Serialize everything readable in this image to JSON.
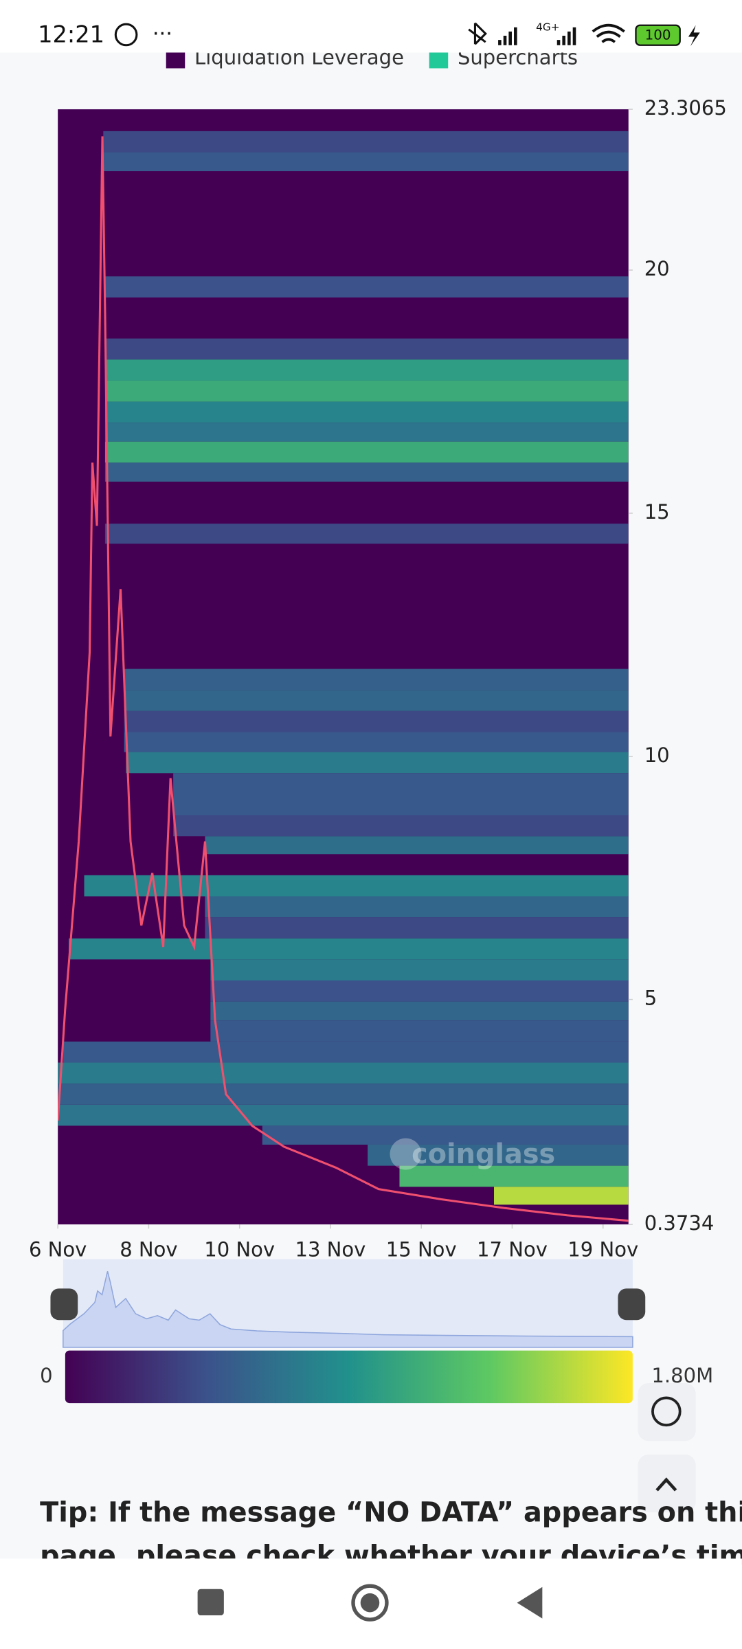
{
  "status_bar": {
    "time": "12:21",
    "network": "4G+",
    "battery": "100"
  },
  "chart_data": {
    "type": "heatmap",
    "legend": [
      "Liquidation Leverage",
      "Supercharts"
    ],
    "legend_colors": [
      "#440154",
      "#20c997"
    ],
    "watermark": "coinglass",
    "xlim": [
      0,
      6.28
    ],
    "xticks": [
      {
        "value": 0,
        "label": "6 Nov"
      },
      {
        "value": 1,
        "label": "8 Nov"
      },
      {
        "value": 2,
        "label": "10 Nov"
      },
      {
        "value": 3,
        "label": "13 Nov"
      },
      {
        "value": 4,
        "label": "15 Nov"
      },
      {
        "value": 5,
        "label": "17 Nov"
      },
      {
        "value": 6,
        "label": "19 Nov"
      }
    ],
    "ylim": [
      0.3734,
      23.3065
    ],
    "yticks": [
      {
        "value": 23.3065,
        "label": "23.3065"
      },
      20,
      15,
      10,
      5,
      {
        "value": 0.3734,
        "label": "0.3734"
      }
    ],
    "colorbar_ticks": [
      0,
      {
        "value": 1800000,
        "label": "1.80M"
      }
    ],
    "heatmap": [
      {
        "low": 22.424,
        "high": 22.857,
        "start": 0.5,
        "value": 400000
      },
      {
        "low": 22.035,
        "high": 22.424,
        "start": 0.5,
        "value": 500000
      },
      {
        "low": 19.437,
        "high": 19.87,
        "start": 0.52,
        "value": 450000
      },
      {
        "low": 18.16,
        "high": 18.593,
        "start": 0.52,
        "value": 400000
      },
      {
        "low": 17.727,
        "high": 18.16,
        "start": 0.52,
        "value": 1000000
      },
      {
        "low": 17.294,
        "high": 17.727,
        "start": 0.52,
        "value": 1100000
      },
      {
        "low": 16.861,
        "high": 17.294,
        "start": 0.52,
        "value": 800000
      },
      {
        "low": 16.472,
        "high": 16.861,
        "start": 0.52,
        "value": 700000
      },
      {
        "low": 16.039,
        "high": 16.472,
        "start": 0.52,
        "value": 1100000
      },
      {
        "low": 15.649,
        "high": 16.039,
        "start": 0.52,
        "value": 550000
      },
      {
        "low": 14.372,
        "high": 14.784,
        "start": 0.52,
        "value": 400000
      },
      {
        "low": 11.364,
        "high": 11.797,
        "start": 0.73,
        "value": 550000
      },
      {
        "low": 10.931,
        "high": 11.364,
        "start": 0.73,
        "value": 600000
      },
      {
        "low": 10.498,
        "high": 10.931,
        "start": 0.73,
        "value": 400000
      },
      {
        "low": 10.087,
        "high": 10.498,
        "start": 0.73,
        "value": 500000
      },
      {
        "low": 9.654,
        "high": 10.087,
        "start": 0.75,
        "value": 750000
      },
      {
        "low": 8.788,
        "high": 9.654,
        "start": 1.27,
        "value": 500000
      },
      {
        "low": 8.355,
        "high": 8.788,
        "start": 1.27,
        "value": 400000
      },
      {
        "low": 7.987,
        "high": 8.355,
        "start": 1.62,
        "value": 650000
      },
      {
        "low": 7.121,
        "high": 7.554,
        "start": 0.29,
        "value": 800000
      },
      {
        "low": 6.688,
        "high": 7.121,
        "start": 1.62,
        "value": 600000
      },
      {
        "low": 6.255,
        "high": 6.688,
        "start": 1.62,
        "value": 400000
      },
      {
        "low": 5.823,
        "high": 6.255,
        "start": 0.12,
        "value": 800000
      },
      {
        "low": 5.39,
        "high": 5.823,
        "start": 1.68,
        "value": 750000
      },
      {
        "low": 4.957,
        "high": 5.39,
        "start": 1.68,
        "value": 450000
      },
      {
        "low": 4.567,
        "high": 4.957,
        "start": 1.68,
        "value": 600000
      },
      {
        "low": 4.134,
        "high": 4.567,
        "start": 1.68,
        "value": 500000
      },
      {
        "low": 3.701,
        "high": 4.134,
        "start": 0.06,
        "value": 500000
      },
      {
        "low": 3.268,
        "high": 3.701,
        "start": 0,
        "value": 750000
      },
      {
        "low": 2.835,
        "high": 3.268,
        "start": 0,
        "value": 550000
      },
      {
        "low": 2.403,
        "high": 2.835,
        "start": 0,
        "value": 700000
      },
      {
        "low": 2.013,
        "high": 2.403,
        "start": 2.25,
        "value": 500000
      },
      {
        "low": 1.58,
        "high": 2.013,
        "start": 3.41,
        "value": 600000
      },
      {
        "low": 1.147,
        "high": 1.58,
        "start": 3.76,
        "value": 1200000
      },
      {
        "low": 0.779,
        "high": 1.147,
        "start": 4.8,
        "value": 1600000
      }
    ],
    "price_x": [
      0,
      0.08,
      0.23,
      0.35,
      0.38,
      0.43,
      0.49,
      0.52,
      0.58,
      0.69,
      0.8,
      0.92,
      1.04,
      1.16,
      1.24,
      1.39,
      1.5,
      1.62,
      1.73,
      1.85,
      2.14,
      2.49,
      3.06,
      3.53,
      4.22,
      4.91,
      5.61,
      6.28
    ],
    "price": [
      2.51,
      4.78,
      8.25,
      12.14,
      16.04,
      14.74,
      22.75,
      19.07,
      10.41,
      13.44,
      8.25,
      6.52,
      7.6,
      6.08,
      9.55,
      6.52,
      6.08,
      8.25,
      4.57,
      3.05,
      2.4,
      1.97,
      1.54,
      1.1,
      0.89,
      0.71,
      0.56,
      0.45
    ],
    "price_color": "#f0506e"
  },
  "tip": [
    "Tip: If the message “NO DATA” appears on this",
    "page, please check whether your device’s time"
  ]
}
